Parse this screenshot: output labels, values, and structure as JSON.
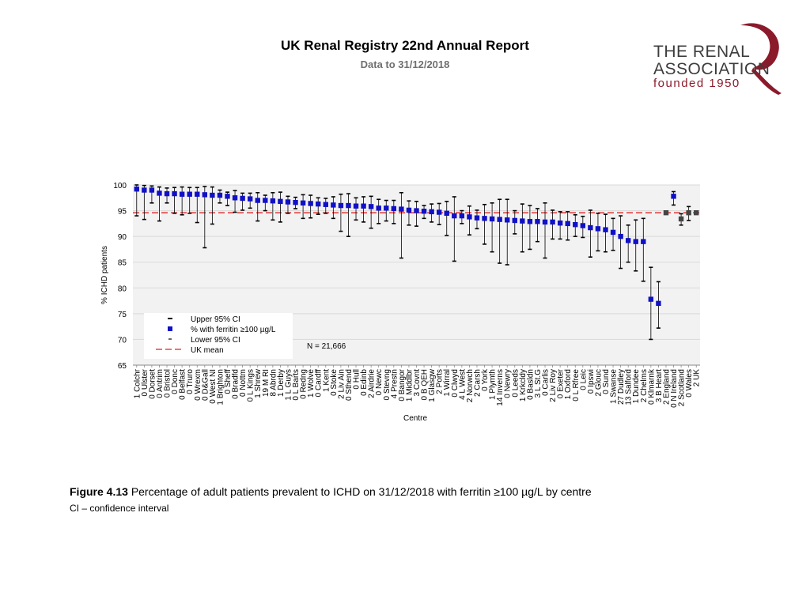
{
  "header": {
    "title": "UK Renal Registry 22nd Annual Report",
    "subtitle": "Data to 31/12/2018"
  },
  "logo": {
    "line1": "THE RENAL",
    "line2": "ASSOCIATION",
    "line3": "founded 1950",
    "color": "#8b1a2b"
  },
  "caption": {
    "figure_label": "Figure 4.13",
    "text": "Percentage of adult patients prevalent to ICHD on 31/12/2018 with ferritin ≥100 µg/L by centre",
    "note": "CI – confidence interval"
  },
  "chart_data": {
    "type": "scatter",
    "title": "",
    "xlabel": "Centre",
    "ylabel": "% ICHD patients",
    "ylim": [
      65,
      100
    ],
    "yticks": [
      65,
      70,
      75,
      80,
      85,
      90,
      95,
      100
    ],
    "uk_mean": 94.6,
    "n_label": "N = 21,666",
    "legend": [
      "Upper 95% CI",
      "% with ferritin ≥100 µg/L",
      "Lower 95% CI",
      "UK mean"
    ],
    "legend_position": "bottom-left",
    "colors": {
      "point": "#1010c8",
      "ci": "#000000",
      "mean": "#e02020",
      "country_point": "#444444",
      "grid": "#d9d9d9",
      "plot_bg": "#f2f2f2"
    },
    "centres": [
      {
        "label": "1 Colchr",
        "value": 99.2,
        "lower": 94.0,
        "upper": 100.0,
        "country": false
      },
      {
        "label": "0 Ulster",
        "value": 99.0,
        "lower": 93.3,
        "upper": 99.9,
        "country": false
      },
      {
        "label": "0 Dorset",
        "value": 99.0,
        "lower": 96.5,
        "upper": 99.8,
        "country": false
      },
      {
        "label": "0 Antrim",
        "value": 98.4,
        "lower": 93.0,
        "upper": 99.6,
        "country": false
      },
      {
        "label": "0 Bristol",
        "value": 98.3,
        "lower": 96.5,
        "upper": 99.4,
        "country": false
      },
      {
        "label": "0 Donc",
        "value": 98.3,
        "lower": 94.5,
        "upper": 99.5,
        "country": false
      },
      {
        "label": "0 Belfast",
        "value": 98.2,
        "lower": 94.2,
        "upper": 99.6,
        "country": false
      },
      {
        "label": "0 Truro",
        "value": 98.2,
        "lower": 94.5,
        "upper": 99.5,
        "country": false
      },
      {
        "label": "0 Wrexm",
        "value": 98.2,
        "lower": 92.7,
        "upper": 99.5,
        "country": false
      },
      {
        "label": "0 D&Gall",
        "value": 98.1,
        "lower": 87.8,
        "upper": 99.7,
        "country": false
      },
      {
        "label": "0 West NI",
        "value": 98.0,
        "lower": 92.4,
        "upper": 99.6,
        "country": false
      },
      {
        "label": "1 Brighton",
        "value": 98.0,
        "lower": 96.5,
        "upper": 99.0,
        "country": false
      },
      {
        "label": "0 Sheff",
        "value": 97.8,
        "lower": 96.0,
        "upper": 98.6,
        "country": false
      },
      {
        "label": "0 Bradfd",
        "value": 97.5,
        "lower": 94.7,
        "upper": 98.9,
        "country": false
      },
      {
        "label": "0 Nottm",
        "value": 97.4,
        "lower": 95.1,
        "upper": 98.4,
        "country": false
      },
      {
        "label": "0 L Kings",
        "value": 97.3,
        "lower": 95.5,
        "upper": 98.4,
        "country": false
      },
      {
        "label": "1 Shrew",
        "value": 97.0,
        "lower": 93.0,
        "upper": 98.5,
        "country": false
      },
      {
        "label": "19 M RI",
        "value": 97.0,
        "lower": 95.0,
        "upper": 98.0,
        "country": false
      },
      {
        "label": "8 Abrdn",
        "value": 96.9,
        "lower": 93.2,
        "upper": 98.5,
        "country": false
      },
      {
        "label": "1 Derby",
        "value": 96.8,
        "lower": 92.8,
        "upper": 98.6,
        "country": false
      },
      {
        "label": "1 L Guys",
        "value": 96.7,
        "lower": 94.5,
        "upper": 97.8,
        "country": false
      },
      {
        "label": "0 L Barts",
        "value": 96.6,
        "lower": 95.4,
        "upper": 97.6,
        "country": false
      },
      {
        "label": "0 Redng",
        "value": 96.5,
        "lower": 93.5,
        "upper": 98.1,
        "country": false
      },
      {
        "label": "1 Wolve",
        "value": 96.4,
        "lower": 93.6,
        "upper": 98.0,
        "country": false
      },
      {
        "label": "0 Cardff",
        "value": 96.3,
        "lower": 94.3,
        "upper": 97.5,
        "country": false
      },
      {
        "label": "1 Kent",
        "value": 96.2,
        "lower": 94.5,
        "upper": 97.4,
        "country": false
      },
      {
        "label": "0 Stoke",
        "value": 96.1,
        "lower": 93.5,
        "upper": 97.7,
        "country": false
      },
      {
        "label": "2 Liv Ain",
        "value": 96.0,
        "lower": 91.0,
        "upper": 98.2,
        "country": false
      },
      {
        "label": "0 Sthend",
        "value": 96.0,
        "lower": 90.0,
        "upper": 98.3,
        "country": false
      },
      {
        "label": "0 Hull",
        "value": 95.9,
        "lower": 93.2,
        "upper": 97.5,
        "country": false
      },
      {
        "label": "0 Edinb",
        "value": 95.9,
        "lower": 92.8,
        "upper": 97.7,
        "country": false
      },
      {
        "label": "2 Airdrie",
        "value": 95.8,
        "lower": 91.6,
        "upper": 97.8,
        "country": false
      },
      {
        "label": "0 Newc",
        "value": 95.5,
        "lower": 92.5,
        "upper": 97.2,
        "country": false
      },
      {
        "label": "0 Stevng",
        "value": 95.5,
        "lower": 93.0,
        "upper": 97.0,
        "country": false
      },
      {
        "label": "4 Prestn",
        "value": 95.4,
        "lower": 92.5,
        "upper": 97.0,
        "country": false
      },
      {
        "label": "0 Bangor",
        "value": 95.3,
        "lower": 85.8,
        "upper": 98.5,
        "country": false
      },
      {
        "label": "1 Middlbr",
        "value": 95.1,
        "lower": 92.2,
        "upper": 96.9,
        "country": false
      },
      {
        "label": "3 Covnt",
        "value": 95.0,
        "lower": 92.0,
        "upper": 96.8,
        "country": false
      },
      {
        "label": "0 B QEH",
        "value": 94.9,
        "lower": 93.5,
        "upper": 96.0,
        "country": false
      },
      {
        "label": "1 Glasgw",
        "value": 94.8,
        "lower": 92.8,
        "upper": 96.3,
        "country": false
      },
      {
        "label": "2 Ports",
        "value": 94.7,
        "lower": 92.3,
        "upper": 96.4,
        "country": false
      },
      {
        "label": "1 Wirral",
        "value": 94.5,
        "lower": 90.2,
        "upper": 96.8,
        "country": false
      },
      {
        "label": "0 Clwyd",
        "value": 94.0,
        "lower": 85.2,
        "upper": 97.7,
        "country": false
      },
      {
        "label": "4 L West",
        "value": 94.0,
        "lower": 92.5,
        "upper": 95.0,
        "country": false
      },
      {
        "label": "2 Norwch",
        "value": 93.8,
        "lower": 90.3,
        "upper": 95.9,
        "country": false
      },
      {
        "label": "2 Carsh",
        "value": 93.6,
        "lower": 91.5,
        "upper": 95.1,
        "country": false
      },
      {
        "label": "0 York",
        "value": 93.5,
        "lower": 88.5,
        "upper": 96.2,
        "country": false
      },
      {
        "label": "1 Plymth",
        "value": 93.4,
        "lower": 87.0,
        "upper": 96.5,
        "country": false
      },
      {
        "label": "14 Inverns",
        "value": 93.3,
        "lower": 84.8,
        "upper": 97.2,
        "country": false
      },
      {
        "label": "0 Newry",
        "value": 93.2,
        "lower": 84.5,
        "upper": 97.2,
        "country": false
      },
      {
        "label": "0 Leeds",
        "value": 93.1,
        "lower": 90.5,
        "upper": 95.0,
        "country": false
      },
      {
        "label": "1 Krkcldy",
        "value": 93.0,
        "lower": 87.0,
        "upper": 96.3,
        "country": false
      },
      {
        "label": "0 Basldn",
        "value": 92.9,
        "lower": 87.5,
        "upper": 96.0,
        "country": false
      },
      {
        "label": "3 L St.G",
        "value": 92.9,
        "lower": 89.0,
        "upper": 95.4,
        "country": false
      },
      {
        "label": "0 Carlis",
        "value": 92.8,
        "lower": 85.8,
        "upper": 96.5,
        "country": false
      },
      {
        "label": "2 Liv Roy",
        "value": 92.8,
        "lower": 89.5,
        "upper": 95.1,
        "country": false
      },
      {
        "label": "0 Exeter",
        "value": 92.6,
        "lower": 89.5,
        "upper": 94.8,
        "country": false
      },
      {
        "label": "1 Oxford",
        "value": 92.5,
        "lower": 89.3,
        "upper": 94.8,
        "country": false
      },
      {
        "label": "0 L Rfree",
        "value": 92.3,
        "lower": 90.0,
        "upper": 94.2,
        "country": false
      },
      {
        "label": "0 Leic",
        "value": 92.1,
        "lower": 89.8,
        "upper": 93.9,
        "country": false
      },
      {
        "label": "0 Ipswi",
        "value": 91.7,
        "lower": 86.0,
        "upper": 95.1,
        "country": false
      },
      {
        "label": "2 Glouc",
        "value": 91.5,
        "lower": 87.2,
        "upper": 94.5,
        "country": false
      },
      {
        "label": "0 Sund",
        "value": 91.3,
        "lower": 87.0,
        "upper": 94.3,
        "country": false
      },
      {
        "label": "1 Swanse",
        "value": 90.8,
        "lower": 87.3,
        "upper": 93.5,
        "country": false
      },
      {
        "label": "27 Dudley",
        "value": 90.0,
        "lower": 83.8,
        "upper": 94.0,
        "country": false
      },
      {
        "label": "13 Salford",
        "value": 89.2,
        "lower": 85.0,
        "upper": 92.2,
        "country": false
      },
      {
        "label": "1 Dundee",
        "value": 89.0,
        "lower": 83.3,
        "upper": 93.2,
        "country": false
      },
      {
        "label": "2 Chelms",
        "value": 89.0,
        "lower": 81.3,
        "upper": 93.5,
        "country": false
      },
      {
        "label": "0 Klmarnk",
        "value": 77.8,
        "lower": 70.0,
        "upper": 84.0,
        "country": false
      },
      {
        "label": "3 B Heart",
        "value": 77.0,
        "lower": 72.2,
        "upper": 81.2,
        "country": false
      },
      {
        "label": "2 England",
        "value": 94.6,
        "lower": 94.3,
        "upper": 94.9,
        "country": true
      },
      {
        "label": "0 N Ireland",
        "value": 97.8,
        "lower": 96.1,
        "upper": 98.7,
        "country": false
      },
      {
        "label": "2 Scotland",
        "value": 93.4,
        "lower": 92.2,
        "upper": 94.4,
        "country": true
      },
      {
        "label": "0 Wales",
        "value": 94.6,
        "lower": 93.1,
        "upper": 95.8,
        "country": true
      },
      {
        "label": "2 UK",
        "value": 94.6,
        "lower": 94.3,
        "upper": 94.9,
        "country": true
      }
    ]
  }
}
